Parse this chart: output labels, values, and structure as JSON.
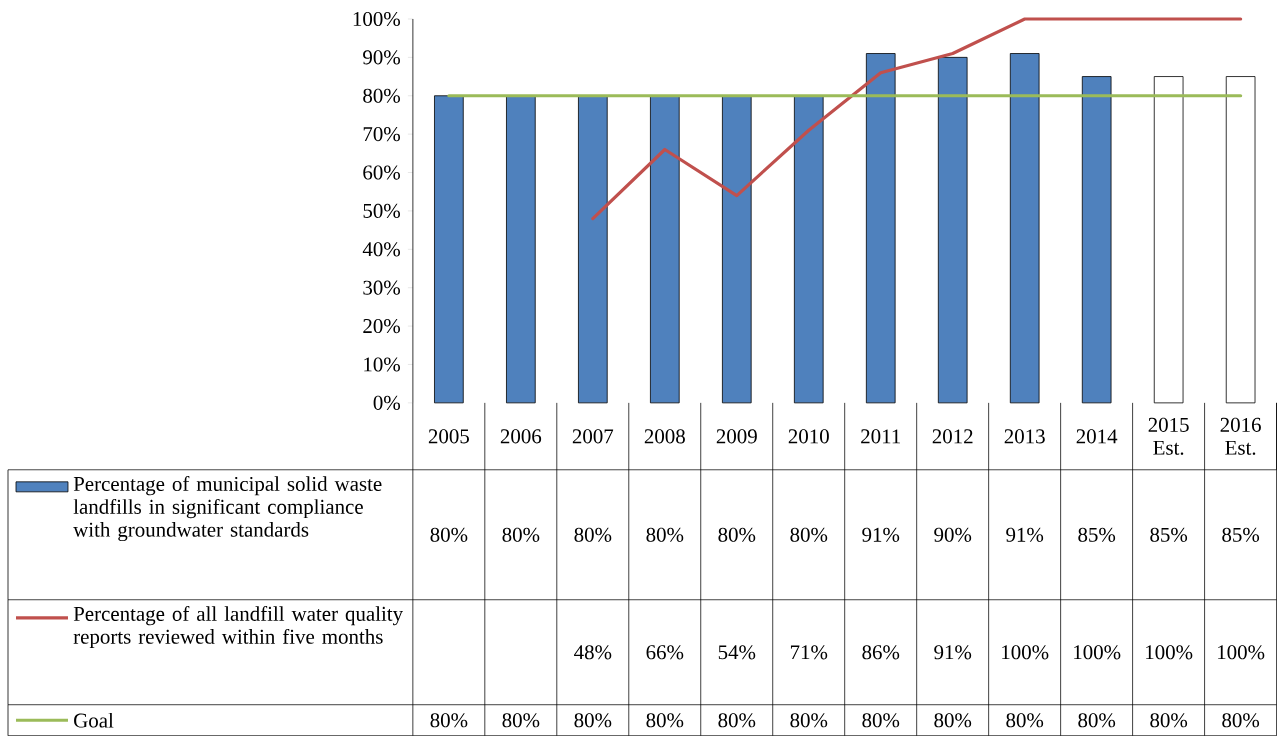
{
  "chart_data": {
    "type": "bar",
    "categories": [
      "2005",
      "2006",
      "2007",
      "2008",
      "2009",
      "2010",
      "2011",
      "2012",
      "2013",
      "2014",
      "2015 Est.",
      "2016 Est."
    ],
    "series": [
      {
        "name": "Percentage of municipal solid waste landfills in significant compliance with groundwater standards",
        "color": "#4f81bd",
        "colors": [
          "#4f81bd",
          "#4f81bd",
          "#4f81bd",
          "#4f81bd",
          "#4f81bd",
          "#4f81bd",
          "#4f81bd",
          "#4f81bd",
          "#4f81bd",
          "#4f81bd",
          "#ffffff",
          "#ffffff"
        ],
        "values": [
          80,
          80,
          80,
          80,
          80,
          80,
          91,
          90,
          91,
          85,
          85,
          85
        ],
        "value_labels": [
          "80%",
          "80%",
          "80%",
          "80%",
          "80%",
          "80%",
          "91%",
          "90%",
          "91%",
          "85%",
          "85%",
          "85%"
        ]
      },
      {
        "type": "line",
        "name": "Percentage of all landfill water quality reports reviewed within five months",
        "color": "#c0504d",
        "values": [
          null,
          null,
          48,
          66,
          54,
          71,
          86,
          91,
          100,
          100,
          100,
          100
        ],
        "value_labels": [
          null,
          null,
          "48%",
          "66%",
          "54%",
          "71%",
          "86%",
          "91%",
          "100%",
          "100%",
          "100%",
          "100%"
        ]
      },
      {
        "type": "line",
        "name": "Goal",
        "color": "#9bbb59",
        "values": [
          80,
          80,
          80,
          80,
          80,
          80,
          80,
          80,
          80,
          80,
          80,
          80
        ],
        "value_labels": [
          "80%",
          "80%",
          "80%",
          "80%",
          "80%",
          "80%",
          "80%",
          "80%",
          "80%",
          "80%",
          "80%",
          "80%"
        ]
      }
    ],
    "ylim": [
      0,
      100
    ],
    "yticks": [
      {
        "value": 0,
        "label": "0%"
      },
      {
        "value": 10,
        "label": "10%"
      },
      {
        "value": 20,
        "label": "20%"
      },
      {
        "value": 30,
        "label": "30%"
      },
      {
        "value": 40,
        "label": "40%"
      },
      {
        "value": 50,
        "label": "50%"
      },
      {
        "value": 60,
        "label": "60%"
      },
      {
        "value": 70,
        "label": "70%"
      },
      {
        "value": 80,
        "label": "80%"
      },
      {
        "value": 90,
        "label": "90%"
      },
      {
        "value": 100,
        "label": "100%"
      }
    ],
    "legend": "bottom"
  }
}
